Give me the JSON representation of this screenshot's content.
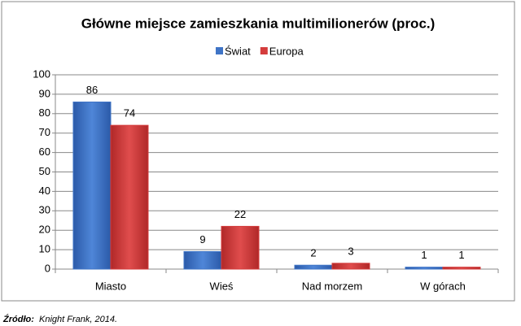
{
  "chart_data": {
    "type": "bar",
    "title": "Główne miejsce zamieszkania multimilionerów (proc.)",
    "categories": [
      "Miasto",
      "Wieś",
      "Nad morzem",
      "W górach"
    ],
    "series": [
      {
        "name": "Świat",
        "color": "#3f74c6",
        "values": [
          86,
          9,
          2,
          1
        ]
      },
      {
        "name": "Europa",
        "color": "#d43c3c",
        "values": [
          74,
          22,
          3,
          1
        ]
      }
    ],
    "ylim": [
      0,
      100
    ],
    "yticks": [
      0,
      10,
      20,
      30,
      40,
      50,
      60,
      70,
      80,
      90,
      100
    ],
    "grid": true,
    "legend": "top",
    "source_label": "Źródło:",
    "source": "Knight Frank, 2014."
  }
}
